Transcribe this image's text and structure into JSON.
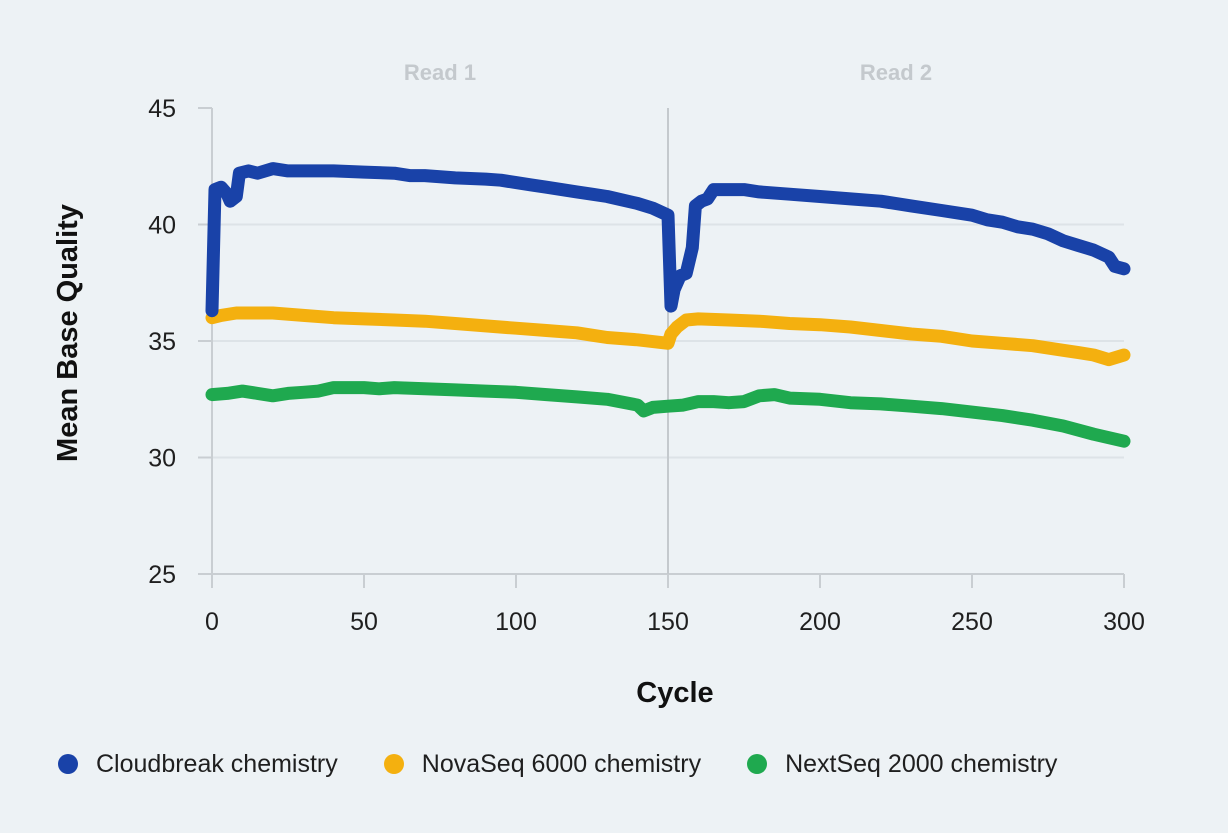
{
  "chart_data": {
    "type": "line",
    "xlabel": "Cycle",
    "ylabel": "Mean Base Quality",
    "xlim": [
      0,
      300
    ],
    "ylim": [
      25,
      45
    ],
    "xticks": [
      0,
      50,
      100,
      150,
      200,
      250,
      300
    ],
    "yticks": [
      25,
      30,
      35,
      40,
      45
    ],
    "divider_x": 150,
    "region_labels": [
      {
        "text": "Read 1",
        "x": 75
      },
      {
        "text": "Read 2",
        "x": 225
      }
    ],
    "grid": "horizontal",
    "series": [
      {
        "name": "Cloudbreak chemistry",
        "color": "#1942a8",
        "points": [
          [
            0,
            36.3
          ],
          [
            1,
            41.5
          ],
          [
            3,
            41.6
          ],
          [
            5,
            41.3
          ],
          [
            6,
            41.0
          ],
          [
            8,
            41.2
          ],
          [
            9,
            42.2
          ],
          [
            12,
            42.3
          ],
          [
            15,
            42.2
          ],
          [
            20,
            42.4
          ],
          [
            25,
            42.3
          ],
          [
            30,
            42.3
          ],
          [
            40,
            42.3
          ],
          [
            50,
            42.25
          ],
          [
            60,
            42.2
          ],
          [
            65,
            42.1
          ],
          [
            70,
            42.1
          ],
          [
            80,
            42.0
          ],
          [
            90,
            41.95
          ],
          [
            95,
            41.9
          ],
          [
            100,
            41.8
          ],
          [
            105,
            41.7
          ],
          [
            110,
            41.6
          ],
          [
            115,
            41.5
          ],
          [
            120,
            41.4
          ],
          [
            125,
            41.3
          ],
          [
            130,
            41.2
          ],
          [
            140,
            40.9
          ],
          [
            145,
            40.7
          ],
          [
            150,
            40.4
          ],
          [
            151,
            36.5
          ],
          [
            152,
            37.2
          ],
          [
            154,
            37.8
          ],
          [
            156,
            37.9
          ],
          [
            158,
            39.0
          ],
          [
            159,
            40.8
          ],
          [
            161,
            41.0
          ],
          [
            163,
            41.1
          ],
          [
            165,
            41.5
          ],
          [
            170,
            41.5
          ],
          [
            175,
            41.5
          ],
          [
            180,
            41.4
          ],
          [
            190,
            41.3
          ],
          [
            200,
            41.2
          ],
          [
            210,
            41.1
          ],
          [
            220,
            41.0
          ],
          [
            230,
            40.8
          ],
          [
            240,
            40.6
          ],
          [
            250,
            40.4
          ],
          [
            255,
            40.2
          ],
          [
            260,
            40.1
          ],
          [
            265,
            39.9
          ],
          [
            270,
            39.8
          ],
          [
            275,
            39.6
          ],
          [
            280,
            39.3
          ],
          [
            285,
            39.1
          ],
          [
            290,
            38.9
          ],
          [
            295,
            38.6
          ],
          [
            297,
            38.2
          ],
          [
            300,
            38.1
          ]
        ]
      },
      {
        "name": "NovaSeq 6000 chemistry",
        "color": "#f4b00f",
        "points": [
          [
            0,
            36.0
          ],
          [
            3,
            36.1
          ],
          [
            8,
            36.2
          ],
          [
            15,
            36.2
          ],
          [
            20,
            36.2
          ],
          [
            30,
            36.1
          ],
          [
            40,
            36.0
          ],
          [
            50,
            35.95
          ],
          [
            60,
            35.9
          ],
          [
            70,
            35.85
          ],
          [
            80,
            35.75
          ],
          [
            90,
            35.65
          ],
          [
            100,
            35.55
          ],
          [
            110,
            35.45
          ],
          [
            120,
            35.35
          ],
          [
            125,
            35.25
          ],
          [
            130,
            35.15
          ],
          [
            140,
            35.05
          ],
          [
            150,
            34.9
          ],
          [
            151,
            35.3
          ],
          [
            153,
            35.6
          ],
          [
            156,
            35.9
          ],
          [
            160,
            35.95
          ],
          [
            170,
            35.9
          ],
          [
            180,
            35.85
          ],
          [
            190,
            35.75
          ],
          [
            200,
            35.7
          ],
          [
            210,
            35.6
          ],
          [
            220,
            35.45
          ],
          [
            230,
            35.3
          ],
          [
            240,
            35.2
          ],
          [
            250,
            35.0
          ],
          [
            260,
            34.9
          ],
          [
            270,
            34.8
          ],
          [
            280,
            34.6
          ],
          [
            285,
            34.5
          ],
          [
            290,
            34.4
          ],
          [
            295,
            34.2
          ],
          [
            300,
            34.4
          ]
        ]
      },
      {
        "name": "NextSeq 2000 chemistry",
        "color": "#1fa94f",
        "points": [
          [
            0,
            32.7
          ],
          [
            5,
            32.75
          ],
          [
            10,
            32.85
          ],
          [
            15,
            32.75
          ],
          [
            20,
            32.65
          ],
          [
            25,
            32.75
          ],
          [
            30,
            32.8
          ],
          [
            35,
            32.85
          ],
          [
            40,
            33.0
          ],
          [
            50,
            33.0
          ],
          [
            55,
            32.95
          ],
          [
            60,
            33.0
          ],
          [
            70,
            32.95
          ],
          [
            80,
            32.9
          ],
          [
            90,
            32.85
          ],
          [
            100,
            32.8
          ],
          [
            110,
            32.7
          ],
          [
            120,
            32.6
          ],
          [
            130,
            32.5
          ],
          [
            140,
            32.25
          ],
          [
            142,
            32.0
          ],
          [
            145,
            32.15
          ],
          [
            150,
            32.2
          ],
          [
            155,
            32.25
          ],
          [
            160,
            32.4
          ],
          [
            165,
            32.4
          ],
          [
            170,
            32.35
          ],
          [
            175,
            32.4
          ],
          [
            180,
            32.65
          ],
          [
            185,
            32.7
          ],
          [
            190,
            32.55
          ],
          [
            200,
            32.5
          ],
          [
            210,
            32.35
          ],
          [
            220,
            32.3
          ],
          [
            230,
            32.2
          ],
          [
            240,
            32.1
          ],
          [
            250,
            31.95
          ],
          [
            260,
            31.8
          ],
          [
            270,
            31.6
          ],
          [
            280,
            31.35
          ],
          [
            290,
            31.0
          ],
          [
            300,
            30.7
          ]
        ]
      }
    ]
  }
}
